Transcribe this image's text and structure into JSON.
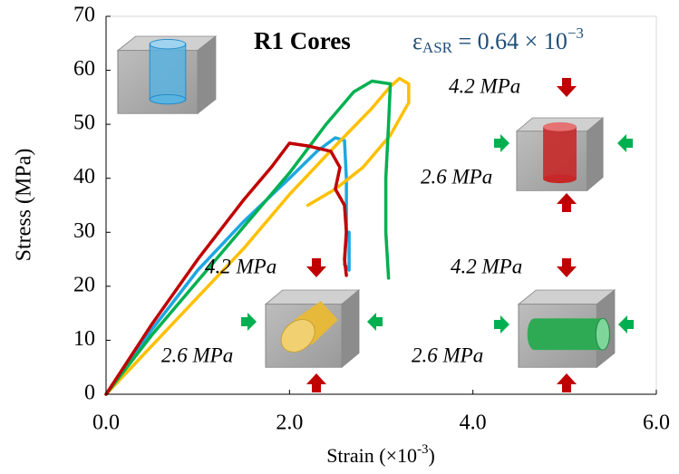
{
  "chart_data": {
    "type": "line",
    "title": "R1 Cores",
    "annotation": {
      "symbol": "ε",
      "subscript": "ASR",
      "text": " = 0.64 × 10",
      "superscript": "−3"
    },
    "xlabel": {
      "text": "Strain (×10",
      "superscript": "-3",
      "suffix": ")"
    },
    "ylabel": "Stress (MPa)",
    "xlim": [
      0,
      6
    ],
    "xticks": [
      {
        "value": 0,
        "label": "0.0"
      },
      {
        "value": 2,
        "label": "2.0"
      },
      {
        "value": 4,
        "label": "4.0"
      },
      {
        "value": 6,
        "label": "6.0"
      }
    ],
    "ylim": [
      0,
      70
    ],
    "yticks": [
      0,
      10,
      20,
      30,
      40,
      50,
      60,
      70
    ],
    "series": [
      {
        "color": "#1ea7e1",
        "x": [
          0,
          0.5,
          1,
          1.5,
          2,
          2.3,
          2.5,
          2.6,
          2.62,
          2.62,
          2.6,
          2.65,
          2.65
        ],
        "values": [
          0,
          12,
          23,
          32,
          40,
          45,
          47.5,
          47,
          40,
          30,
          24,
          23,
          30
        ]
      },
      {
        "color": "#ffc000",
        "x": [
          0,
          0.5,
          1,
          1.5,
          2,
          2.5,
          2.9,
          3.1,
          3.2,
          3.3,
          3.3,
          3.1,
          2.8,
          2.5,
          2.2
        ],
        "values": [
          0,
          9,
          18,
          27,
          37,
          46,
          53,
          57,
          58.5,
          57.5,
          54,
          48,
          42,
          38,
          35
        ]
      },
      {
        "color": "#00b050",
        "x": [
          0,
          0.5,
          1,
          1.5,
          2,
          2.4,
          2.7,
          2.9,
          3.1,
          3.08,
          3.05,
          3.05,
          3.08
        ],
        "values": [
          0,
          11,
          21,
          31,
          41,
          50,
          56,
          58,
          57.5,
          50,
          40,
          30,
          21.5
        ]
      },
      {
        "color": "#c00000",
        "x": [
          0,
          0.5,
          1,
          1.5,
          1.8,
          2.0,
          2.2,
          2.45,
          2.55,
          2.5,
          2.6,
          2.62,
          2.6,
          2.62
        ],
        "values": [
          0,
          13,
          25,
          36,
          42,
          46.5,
          46,
          45,
          42,
          38,
          35,
          30,
          25,
          22
        ]
      }
    ],
    "insets": [
      {
        "vertical": "4.2 MPa",
        "horizontal": "2.6 MPa"
      },
      {
        "vertical": "4.2 MPa",
        "horizontal": "2.6 MPa"
      },
      {
        "vertical": "4.2 MPa",
        "horizontal": "2.6 MPa"
      }
    ]
  }
}
